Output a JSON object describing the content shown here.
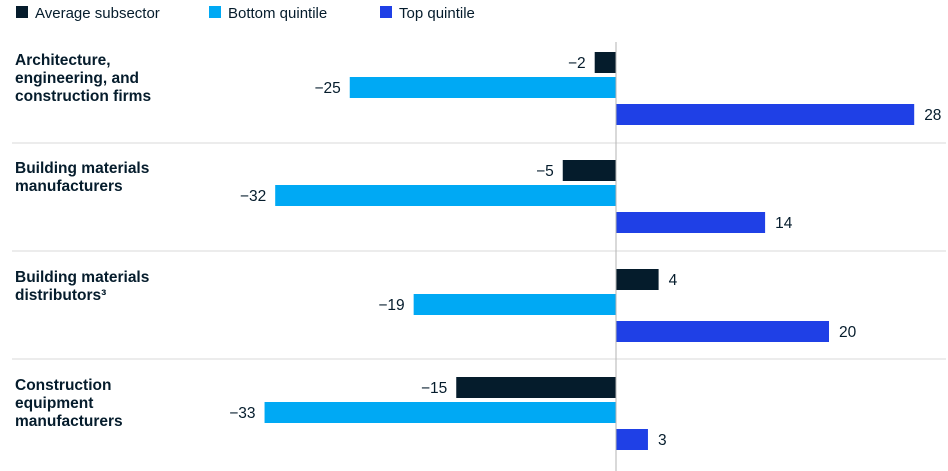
{
  "chart_data": {
    "type": "bar",
    "orientation": "horizontal",
    "categories": [
      [
        "Architecture,",
        "engineering, and",
        "construction firms"
      ],
      [
        "Building materials",
        "manufacturers"
      ],
      [
        "Building materials",
        "distributors³"
      ],
      [
        "Construction",
        "equipment",
        "manufacturers"
      ]
    ],
    "series": [
      {
        "name": "Average subsector",
        "color": "#051c2c",
        "values": [
          -2,
          -5,
          4,
          -15
        ]
      },
      {
        "name": "Bottom quintile",
        "color": "#00a9f4",
        "values": [
          -25,
          -32,
          -19,
          -33
        ]
      },
      {
        "name": "Top quintile",
        "color": "#1f40e6",
        "values": [
          28,
          14,
          20,
          3
        ]
      }
    ],
    "xlim": [
      -35,
      30
    ],
    "legend_position": "top-left",
    "grid": false
  }
}
